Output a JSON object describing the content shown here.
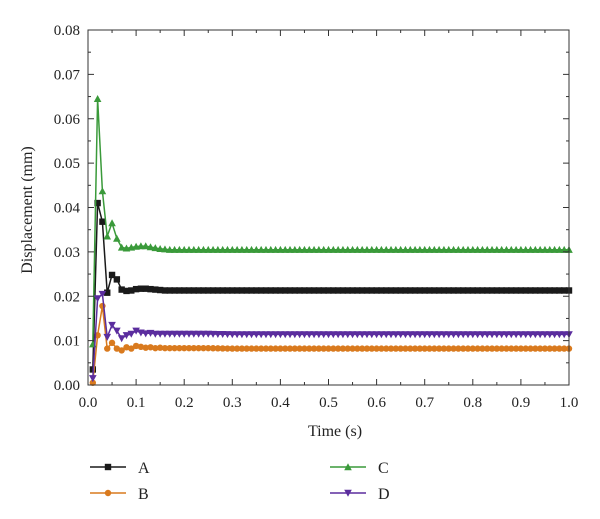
{
  "chart_data": {
    "type": "line",
    "xlabel": "Time (s)",
    "ylabel": "Displacement (mm)",
    "xlim": [
      0,
      1.0
    ],
    "ylim": [
      0,
      0.08
    ],
    "xticks": [
      "0.0",
      "0.1",
      "0.2",
      "0.3",
      "0.4",
      "0.5",
      "0.6",
      "0.7",
      "0.8",
      "0.9",
      "1.0"
    ],
    "yticks": [
      "0.00",
      "0.01",
      "0.02",
      "0.03",
      "0.04",
      "0.05",
      "0.06",
      "0.07",
      "0.08"
    ],
    "grid": false,
    "legend_position": "bottom",
    "series": [
      {
        "name": "A",
        "color": "#1a1a1a",
        "marker": "square",
        "x": [
          0.01,
          0.02,
          0.03,
          0.04,
          0.05,
          0.06,
          0.07,
          0.08,
          0.09,
          0.1,
          0.11,
          0.12,
          0.13,
          0.14,
          0.15,
          0.16,
          0.17,
          0.18,
          0.19,
          0.2,
          0.25,
          0.3,
          0.35,
          0.4,
          0.45,
          0.5,
          0.55,
          0.6,
          0.65,
          0.7,
          0.75,
          0.8,
          0.85,
          0.9,
          0.95,
          1.0
        ],
        "y": [
          0.0035,
          0.041,
          0.0368,
          0.0208,
          0.0248,
          0.0238,
          0.0215,
          0.0212,
          0.0213,
          0.0216,
          0.0217,
          0.0217,
          0.0216,
          0.0215,
          0.0214,
          0.0213,
          0.0213,
          0.0213,
          0.0213,
          0.0213,
          0.0213,
          0.0213,
          0.0213,
          0.0213,
          0.0213,
          0.0213,
          0.0213,
          0.0213,
          0.0213,
          0.0213,
          0.0213,
          0.0213,
          0.0213,
          0.0213,
          0.0213,
          0.0213
        ]
      },
      {
        "name": "B",
        "color": "#d97a1e",
        "marker": "circle",
        "x": [
          0.01,
          0.02,
          0.03,
          0.04,
          0.05,
          0.06,
          0.07,
          0.08,
          0.09,
          0.1,
          0.11,
          0.12,
          0.13,
          0.14,
          0.15,
          0.16,
          0.17,
          0.18,
          0.19,
          0.2,
          0.25,
          0.3,
          0.35,
          0.4,
          0.45,
          0.5,
          0.55,
          0.6,
          0.65,
          0.7,
          0.75,
          0.8,
          0.85,
          0.9,
          0.95,
          1.0
        ],
        "y": [
          0.0005,
          0.0112,
          0.0178,
          0.0082,
          0.0095,
          0.0082,
          0.0078,
          0.0085,
          0.0082,
          0.0088,
          0.0086,
          0.0084,
          0.0085,
          0.0083,
          0.0084,
          0.0083,
          0.0083,
          0.0083,
          0.0083,
          0.0083,
          0.0083,
          0.0082,
          0.0082,
          0.0082,
          0.0082,
          0.0082,
          0.0082,
          0.0082,
          0.0082,
          0.0082,
          0.0082,
          0.0082,
          0.0082,
          0.0082,
          0.0082,
          0.0082
        ]
      },
      {
        "name": "C",
        "color": "#3a9a3a",
        "marker": "triangle-up",
        "x": [
          0.01,
          0.02,
          0.03,
          0.04,
          0.05,
          0.06,
          0.07,
          0.08,
          0.09,
          0.1,
          0.11,
          0.12,
          0.13,
          0.14,
          0.15,
          0.16,
          0.17,
          0.18,
          0.19,
          0.2,
          0.25,
          0.3,
          0.35,
          0.4,
          0.45,
          0.5,
          0.55,
          0.6,
          0.65,
          0.7,
          0.75,
          0.8,
          0.85,
          0.9,
          0.95,
          1.0
        ],
        "y": [
          0.0092,
          0.0645,
          0.0437,
          0.0335,
          0.0365,
          0.033,
          0.031,
          0.0308,
          0.031,
          0.0312,
          0.0313,
          0.0313,
          0.0311,
          0.0309,
          0.0307,
          0.0306,
          0.0305,
          0.0305,
          0.0305,
          0.0305,
          0.0305,
          0.0305,
          0.0305,
          0.0305,
          0.0305,
          0.0305,
          0.0305,
          0.0305,
          0.0305,
          0.0305,
          0.0305,
          0.0305,
          0.0305,
          0.0305,
          0.0305,
          0.0305
        ]
      },
      {
        "name": "D",
        "color": "#5b2d9e",
        "marker": "triangle-down",
        "x": [
          0.01,
          0.02,
          0.03,
          0.04,
          0.05,
          0.06,
          0.07,
          0.08,
          0.09,
          0.1,
          0.11,
          0.12,
          0.13,
          0.14,
          0.15,
          0.16,
          0.17,
          0.18,
          0.19,
          0.2,
          0.25,
          0.3,
          0.35,
          0.4,
          0.45,
          0.5,
          0.55,
          0.6,
          0.65,
          0.7,
          0.75,
          0.8,
          0.85,
          0.9,
          0.95,
          1.0
        ],
        "y": [
          0.0015,
          0.0195,
          0.0205,
          0.0108,
          0.0135,
          0.0122,
          0.0105,
          0.0112,
          0.0115,
          0.0122,
          0.0118,
          0.0116,
          0.0117,
          0.0115,
          0.0115,
          0.0115,
          0.0115,
          0.0115,
          0.0115,
          0.0115,
          0.0115,
          0.0114,
          0.0114,
          0.0114,
          0.0114,
          0.0114,
          0.0114,
          0.0114,
          0.0114,
          0.0114,
          0.0114,
          0.0114,
          0.0114,
          0.0114,
          0.0114,
          0.0114
        ]
      }
    ]
  }
}
